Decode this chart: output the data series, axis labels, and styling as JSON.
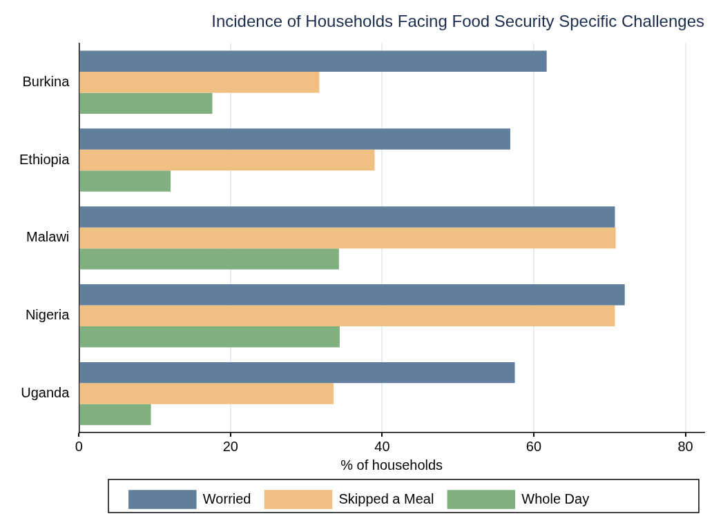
{
  "chart_data": {
    "type": "bar",
    "orientation": "horizontal",
    "title": "Incidence of Households Facing Food Security Specific Challenges",
    "xlabel": "% of households",
    "categories": [
      "Burkina",
      "Ethiopia",
      "Malawi",
      "Nigeria",
      "Uganda"
    ],
    "series": [
      {
        "name": "Worried",
        "color": "#5f7f9a",
        "values": [
          61.7,
          56.9,
          70.7,
          72.0,
          57.5
        ]
      },
      {
        "name": "Skipped a Meal",
        "color": "#f0bf82",
        "values": [
          31.7,
          39.0,
          70.8,
          70.7,
          33.6
        ]
      },
      {
        "name": "Whole Day",
        "color": "#80b080",
        "values": [
          17.6,
          12.1,
          34.3,
          34.4,
          9.5
        ]
      }
    ],
    "xlim": [
      0,
      82.5
    ],
    "xticks": [
      0,
      20,
      40,
      60,
      80
    ],
    "grid": "x",
    "legend": "bottom"
  }
}
